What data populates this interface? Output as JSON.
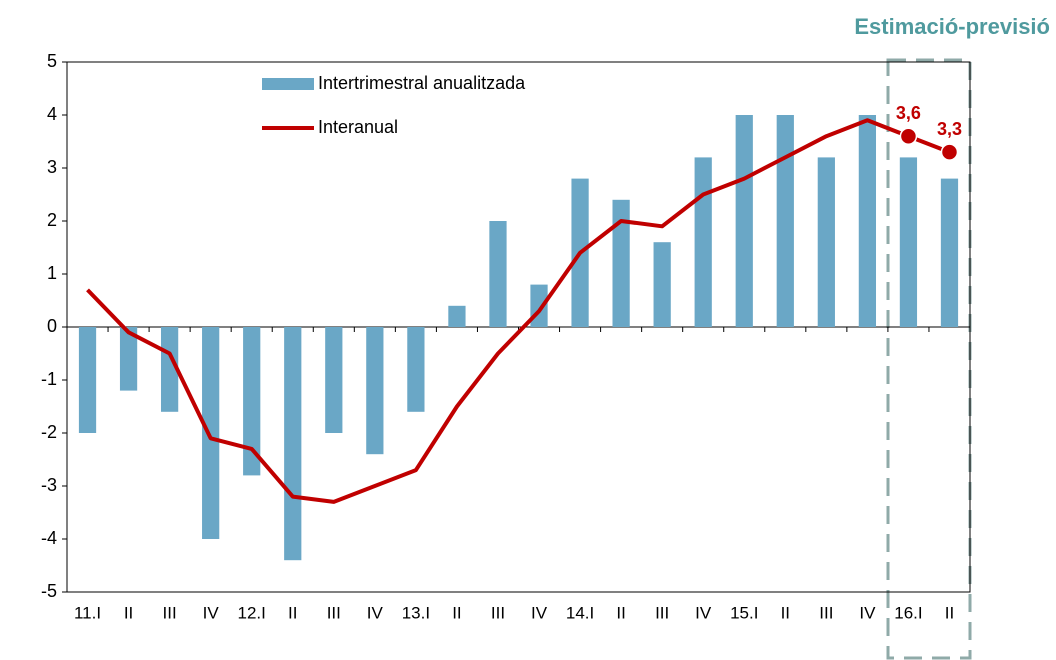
{
  "chart_data": {
    "type": "bar_line",
    "annotation": "Estimació-previsió",
    "categories": [
      "11.I",
      "II",
      "III",
      "IV",
      "12.I",
      "II",
      "III",
      "IV",
      "13.I",
      "II",
      "III",
      "IV",
      "14.I",
      "II",
      "III",
      "IV",
      "15.I",
      "II",
      "III",
      "IV",
      "16.I",
      "II"
    ],
    "series": [
      {
        "name": "Intertrimestral anualitzada",
        "type": "bar",
        "color": "#6aa7c6",
        "values": [
          -2,
          -1.2,
          -1.6,
          -4,
          -2.8,
          -4.4,
          -2,
          -2.4,
          -1.6,
          0.4,
          2,
          0.8,
          2.8,
          2.4,
          1.6,
          3.2,
          4,
          4,
          3.2,
          4,
          3.2,
          2.8
        ]
      },
      {
        "name": "Interanual",
        "type": "line",
        "color": "#c00000",
        "values": [
          0.7,
          -0.1,
          -0.5,
          -2.1,
          -2.3,
          -3.2,
          -3.3,
          -3.0,
          -2.7,
          -1.5,
          -0.5,
          0.3,
          1.4,
          2.0,
          1.9,
          2.5,
          2.8,
          3.2,
          3.6,
          3.9,
          3.6,
          3.3
        ],
        "value_labels": [
          null,
          null,
          null,
          null,
          null,
          null,
          null,
          null,
          null,
          null,
          null,
          null,
          null,
          null,
          null,
          null,
          null,
          null,
          null,
          null,
          "3,6",
          "3,3"
        ]
      }
    ],
    "ylim": [
      -5,
      5
    ],
    "yticks": [
      -5,
      -4,
      -3,
      -2,
      -1,
      0,
      1,
      2,
      3,
      4,
      5
    ]
  }
}
